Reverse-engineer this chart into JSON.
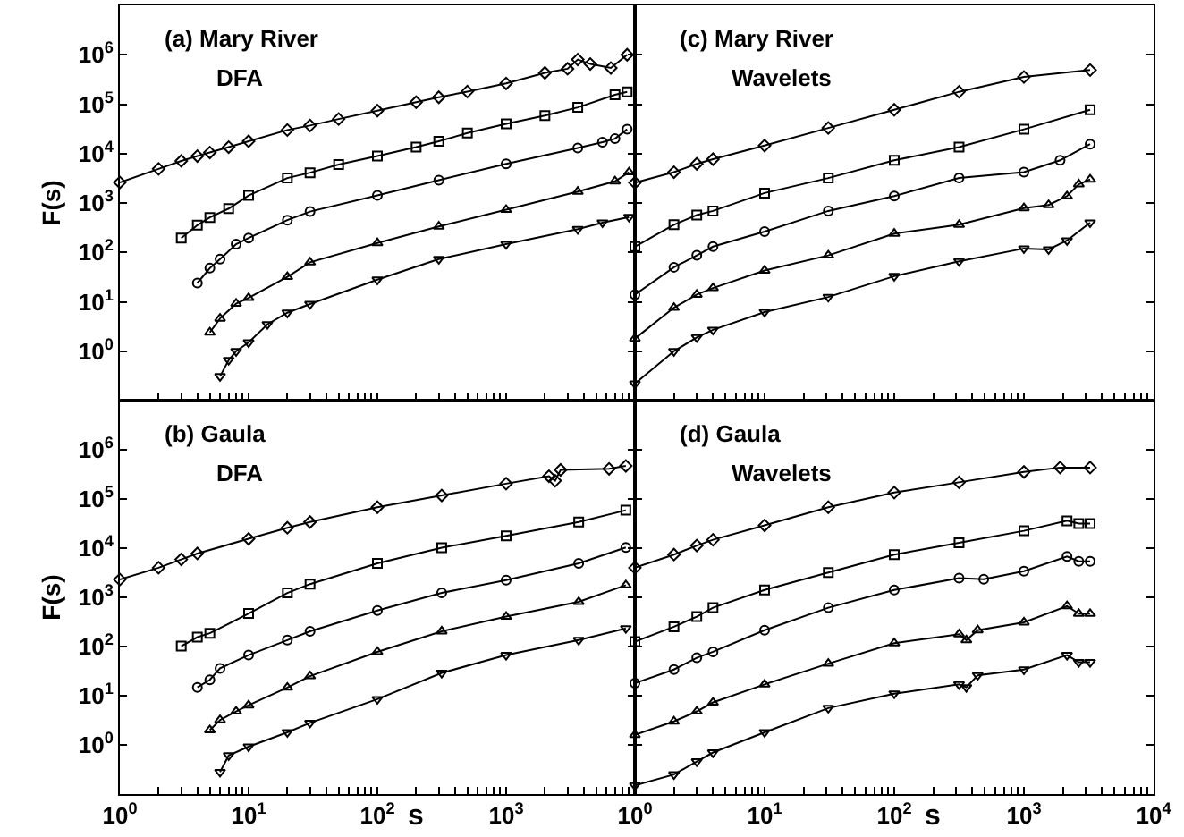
{
  "chart_data": [
    {
      "type": "line",
      "ylabel": "F(s)",
      "annotations": [
        "(a) Mary River",
        "DFA"
      ],
      "log": "xy",
      "grid": false,
      "line_style": "solid",
      "tick_labels": "y",
      "xlim": [
        1,
        10000
      ],
      "ylim": [
        0.1,
        10000000
      ],
      "xticks": [
        {
          "value": 1,
          "label": null
        },
        {
          "value": 2,
          "label": null
        },
        {
          "value": 3,
          "label": null
        },
        {
          "value": 4,
          "label": null
        },
        {
          "value": 5,
          "label": null
        },
        {
          "value": 6,
          "label": null
        },
        {
          "value": 7,
          "label": null
        },
        {
          "value": 8,
          "label": null
        },
        {
          "value": 9,
          "label": null
        },
        {
          "value": 10,
          "label": null
        },
        {
          "value": 20,
          "label": null
        },
        {
          "value": 30,
          "label": null
        },
        {
          "value": 40,
          "label": null
        },
        {
          "value": 50,
          "label": null
        },
        {
          "value": 60,
          "label": null
        },
        {
          "value": 70,
          "label": null
        },
        {
          "value": 80,
          "label": null
        },
        {
          "value": 90,
          "label": null
        },
        {
          "value": 100,
          "label": null
        },
        {
          "value": 200,
          "label": null
        },
        {
          "value": 300,
          "label": null
        },
        {
          "value": 400,
          "label": null
        },
        {
          "value": 500,
          "label": null
        },
        {
          "value": 600,
          "label": null
        },
        {
          "value": 700,
          "label": null
        },
        {
          "value": 800,
          "label": null
        },
        {
          "value": 900,
          "label": null
        },
        {
          "value": 1000,
          "label": null
        },
        {
          "value": 2000,
          "label": null
        },
        {
          "value": 3000,
          "label": null
        },
        {
          "value": 4000,
          "label": null
        },
        {
          "value": 5000,
          "label": null
        },
        {
          "value": 6000,
          "label": null
        },
        {
          "value": 7000,
          "label": null
        },
        {
          "value": 8000,
          "label": null
        },
        {
          "value": 9000,
          "label": null
        }
      ],
      "yticks": [
        {
          "value": 1,
          "label": "10$^{0}$"
        },
        {
          "value": 10,
          "label": "10$^{1}$"
        },
        {
          "value": 100,
          "label": "10$^{2}$"
        },
        {
          "value": 1000,
          "label": "10$^{3}$"
        },
        {
          "value": 10000,
          "label": "10$^{4}$"
        },
        {
          "value": 100000,
          "label": "10$^{5}$"
        },
        {
          "value": 1000000,
          "label": "10$^{6}$"
        }
      ],
      "series": [
        {
          "color": "#000000",
          "marker": "diamond",
          "x": [
            1,
            2,
            3,
            4,
            5,
            7,
            10,
            20,
            30,
            50,
            100,
            200,
            300,
            500,
            1000,
            2000,
            3000,
            3600,
            4500,
            6500,
            8700
          ],
          "values": [
            2600,
            4900,
            7100,
            8900,
            10500,
            13500,
            17800,
            30000,
            37000,
            50000,
            74000,
            110000,
            138000,
            180000,
            263000,
            430000,
            520000,
            800000,
            650000,
            540000,
            1000000
          ]
        },
        {
          "color": "#000000",
          "marker": "square",
          "x": [
            3,
            4,
            5,
            7,
            10,
            20,
            30,
            50,
            100,
            200,
            300,
            500,
            1000,
            2000,
            3600,
            7000,
            8700
          ],
          "values": [
            195,
            355,
            510,
            770,
            1420,
            3200,
            4100,
            6000,
            8900,
            13500,
            17800,
            26000,
            40000,
            59000,
            86000,
            155000,
            178000
          ]
        },
        {
          "color": "#000000",
          "marker": "circle",
          "x": [
            4,
            5,
            6,
            8,
            10,
            20,
            30,
            100,
            300,
            1000,
            3600,
            5600,
            7000,
            8700
          ],
          "values": [
            24,
            48,
            73,
            147,
            195,
            450,
            670,
            1420,
            2900,
            6200,
            13000,
            17000,
            20000,
            31000
          ]
        },
        {
          "color": "#000000",
          "marker": "triangle",
          "x": [
            5,
            6,
            8,
            10,
            20,
            30,
            100,
            300,
            1000,
            3600,
            7000,
            9000
          ],
          "values": [
            2.4,
            4.6,
            9.2,
            12,
            32,
            63,
            155,
            335,
            730,
            1700,
            2750,
            4200
          ]
        },
        {
          "color": "#000000",
          "marker": "triangle-down",
          "x": [
            6,
            7,
            8,
            10,
            14,
            20,
            30,
            100,
            300,
            1000,
            3600,
            5600,
            9000
          ],
          "values": [
            0.31,
            0.66,
            1,
            1.5,
            3.5,
            6,
            9,
            28,
            73,
            147,
            295,
            400,
            520
          ]
        }
      ]
    },
    {
      "type": "line",
      "annotations": [
        "(c) Mary River",
        "Wavelets"
      ],
      "log": "xy",
      "grid": false,
      "line_style": "solid",
      "tick_labels": false,
      "xlim": [
        1,
        10000
      ],
      "ylim": [
        0.1,
        10000000
      ],
      "xticks": [
        {
          "value": 1,
          "label": null
        },
        {
          "value": 2,
          "label": null
        },
        {
          "value": 3,
          "label": null
        },
        {
          "value": 4,
          "label": null
        },
        {
          "value": 5,
          "label": null
        },
        {
          "value": 6,
          "label": null
        },
        {
          "value": 7,
          "label": null
        },
        {
          "value": 8,
          "label": null
        },
        {
          "value": 9,
          "label": null
        },
        {
          "value": 10,
          "label": null
        },
        {
          "value": 20,
          "label": null
        },
        {
          "value": 30,
          "label": null
        },
        {
          "value": 40,
          "label": null
        },
        {
          "value": 50,
          "label": null
        },
        {
          "value": 60,
          "label": null
        },
        {
          "value": 70,
          "label": null
        },
        {
          "value": 80,
          "label": null
        },
        {
          "value": 90,
          "label": null
        },
        {
          "value": 100,
          "label": null
        },
        {
          "value": 200,
          "label": null
        },
        {
          "value": 300,
          "label": null
        },
        {
          "value": 400,
          "label": null
        },
        {
          "value": 500,
          "label": null
        },
        {
          "value": 600,
          "label": null
        },
        {
          "value": 700,
          "label": null
        },
        {
          "value": 800,
          "label": null
        },
        {
          "value": 900,
          "label": null
        },
        {
          "value": 1000,
          "label": null
        },
        {
          "value": 2000,
          "label": null
        },
        {
          "value": 3000,
          "label": null
        },
        {
          "value": 4000,
          "label": null
        },
        {
          "value": 5000,
          "label": null
        },
        {
          "value": 6000,
          "label": null
        },
        {
          "value": 7000,
          "label": null
        },
        {
          "value": 8000,
          "label": null
        },
        {
          "value": 9000,
          "label": null
        },
        {
          "value": 10000,
          "label": null
        }
      ],
      "yticks": [
        {
          "value": 1,
          "label": null
        },
        {
          "value": 10,
          "label": null
        },
        {
          "value": 100,
          "label": null
        },
        {
          "value": 1000,
          "label": null
        },
        {
          "value": 10000,
          "label": null
        },
        {
          "value": 100000,
          "label": null
        },
        {
          "value": 1000000,
          "label": null
        }
      ],
      "series": [
        {
          "color": "#000000",
          "marker": "diamond",
          "x": [
            1,
            2,
            3,
            4,
            10,
            31,
            100,
            316,
            1000,
            3240
          ],
          "values": [
            2570,
            4200,
            6200,
            7700,
            14500,
            33000,
            77000,
            178000,
            355000,
            490000
          ]
        },
        {
          "color": "#000000",
          "marker": "square",
          "x": [
            1,
            2,
            3,
            4,
            10,
            31,
            100,
            316,
            1000,
            3240
          ],
          "values": [
            131,
            363,
            570,
            690,
            1590,
            3200,
            7300,
            13500,
            31000,
            77000
          ]
        },
        {
          "color": "#000000",
          "marker": "circle",
          "x": [
            1,
            2,
            3,
            4,
            10,
            31,
            100,
            316,
            1000,
            1900,
            3240
          ],
          "values": [
            14,
            50,
            87,
            131,
            263,
            690,
            1380,
            3200,
            4200,
            7300,
            15500
          ]
        },
        {
          "color": "#000000",
          "marker": "triangle",
          "x": [
            1,
            2,
            3,
            4,
            10,
            31,
            100,
            316,
            1000,
            1550,
            2150,
            2650,
            3240
          ],
          "values": [
            1.8,
            7.6,
            14,
            19,
            43,
            87,
            240,
            363,
            790,
            910,
            1380,
            2400,
            3000
          ]
        },
        {
          "color": "#000000",
          "marker": "triangle-down",
          "x": [
            1,
            2,
            3,
            4,
            10,
            31,
            100,
            316,
            1000,
            1550,
            2150,
            3240
          ],
          "values": [
            0.22,
            1,
            1.9,
            2.7,
            6.2,
            12.5,
            33,
            66,
            120,
            115,
            174,
            400
          ]
        }
      ]
    },
    {
      "type": "line",
      "xlabel": "s",
      "ylabel": "F(s)",
      "annotations": [
        "(b) Gaula",
        "DFA"
      ],
      "log": "xy",
      "grid": false,
      "line_style": "solid",
      "xlim": [
        1,
        10000
      ],
      "ylim": [
        0.1,
        10000000
      ],
      "xticks": [
        {
          "value": 1,
          "label": "10$^{0}$"
        },
        {
          "value": 2,
          "label": null
        },
        {
          "value": 3,
          "label": null
        },
        {
          "value": 4,
          "label": null
        },
        {
          "value": 5,
          "label": null
        },
        {
          "value": 6,
          "label": null
        },
        {
          "value": 7,
          "label": null
        },
        {
          "value": 8,
          "label": null
        },
        {
          "value": 9,
          "label": null
        },
        {
          "value": 10,
          "label": "10$^{1}$"
        },
        {
          "value": 20,
          "label": null
        },
        {
          "value": 30,
          "label": null
        },
        {
          "value": 40,
          "label": null
        },
        {
          "value": 50,
          "label": null
        },
        {
          "value": 60,
          "label": null
        },
        {
          "value": 70,
          "label": null
        },
        {
          "value": 80,
          "label": null
        },
        {
          "value": 90,
          "label": null
        },
        {
          "value": 100,
          "label": "10$^{2}$"
        },
        {
          "value": 200,
          "label": null
        },
        {
          "value": 300,
          "label": null
        },
        {
          "value": 400,
          "label": null
        },
        {
          "value": 500,
          "label": null
        },
        {
          "value": 600,
          "label": null
        },
        {
          "value": 700,
          "label": null
        },
        {
          "value": 800,
          "label": null
        },
        {
          "value": 900,
          "label": null
        },
        {
          "value": 1000,
          "label": "10$^{3}$"
        },
        {
          "value": 2000,
          "label": null
        },
        {
          "value": 3000,
          "label": null
        },
        {
          "value": 4000,
          "label": null
        },
        {
          "value": 5000,
          "label": null
        },
        {
          "value": 6000,
          "label": null
        },
        {
          "value": 7000,
          "label": null
        },
        {
          "value": 8000,
          "label": null
        },
        {
          "value": 9000,
          "label": null
        }
      ],
      "yticks": [
        {
          "value": 1,
          "label": "10$^{0}$"
        },
        {
          "value": 10,
          "label": "10$^{1}$"
        },
        {
          "value": 100,
          "label": "10$^{2}$"
        },
        {
          "value": 1000,
          "label": "10$^{3}$"
        },
        {
          "value": 10000,
          "label": "10$^{4}$"
        },
        {
          "value": 100000,
          "label": "10$^{5}$"
        },
        {
          "value": 1000000,
          "label": "10$^{6}$"
        }
      ],
      "series": [
        {
          "color": "#000000",
          "marker": "diamond",
          "x": [
            1,
            2,
            3,
            4,
            10,
            20,
            30,
            100,
            316,
            1000,
            2150,
            2400,
            2650,
            6300,
            8500
          ],
          "values": [
            2300,
            4000,
            5900,
            7800,
            15500,
            26000,
            34000,
            68000,
            118000,
            205000,
            290000,
            235000,
            390000,
            410000,
            470000
          ]
        },
        {
          "color": "#000000",
          "marker": "square",
          "x": [
            3,
            4,
            5,
            10,
            20,
            30,
            100,
            316,
            1000,
            3660,
            8500
          ],
          "values": [
            102,
            155,
            186,
            470,
            1230,
            1860,
            4900,
            10200,
            17800,
            34000,
            59000
          ]
        },
        {
          "color": "#000000",
          "marker": "circle",
          "x": [
            4,
            5,
            6,
            10,
            20,
            30,
            100,
            316,
            1000,
            3660,
            8500
          ],
          "values": [
            14.8,
            21,
            36,
            67,
            135,
            204,
            540,
            1230,
            2240,
            4900,
            10300
          ]
        },
        {
          "color": "#000000",
          "marker": "triangle",
          "x": [
            5,
            6,
            8,
            10,
            20,
            30,
            100,
            316,
            1000,
            3660,
            8500
          ],
          "values": [
            2,
            3.2,
            4.8,
            6.4,
            14.7,
            25,
            78,
            204,
            405,
            810,
            1770
          ]
        },
        {
          "color": "#000000",
          "marker": "triangle-down",
          "x": [
            6,
            7,
            10,
            20,
            30,
            100,
            316,
            1000,
            3660,
            8500
          ],
          "values": [
            0.28,
            0.61,
            0.92,
            1.8,
            2.8,
            8.5,
            29,
            67,
            135,
            234
          ]
        }
      ]
    },
    {
      "type": "line",
      "xlabel": "s",
      "annotations": [
        "(d) Gaula",
        "Wavelets"
      ],
      "log": "xy",
      "grid": false,
      "line_style": "solid",
      "tick_labels": "x",
      "xlim": [
        1,
        10000
      ],
      "ylim": [
        0.1,
        10000000
      ],
      "xticks": [
        {
          "value": 1,
          "label": "10$^{0}$"
        },
        {
          "value": 2,
          "label": null
        },
        {
          "value": 3,
          "label": null
        },
        {
          "value": 4,
          "label": null
        },
        {
          "value": 5,
          "label": null
        },
        {
          "value": 6,
          "label": null
        },
        {
          "value": 7,
          "label": null
        },
        {
          "value": 8,
          "label": null
        },
        {
          "value": 9,
          "label": null
        },
        {
          "value": 10,
          "label": "10$^{1}$"
        },
        {
          "value": 20,
          "label": null
        },
        {
          "value": 30,
          "label": null
        },
        {
          "value": 40,
          "label": null
        },
        {
          "value": 50,
          "label": null
        },
        {
          "value": 60,
          "label": null
        },
        {
          "value": 70,
          "label": null
        },
        {
          "value": 80,
          "label": null
        },
        {
          "value": 90,
          "label": null
        },
        {
          "value": 100,
          "label": "10$^{2}$"
        },
        {
          "value": 200,
          "label": null
        },
        {
          "value": 300,
          "label": null
        },
        {
          "value": 400,
          "label": null
        },
        {
          "value": 500,
          "label": null
        },
        {
          "value": 600,
          "label": null
        },
        {
          "value": 700,
          "label": null
        },
        {
          "value": 800,
          "label": null
        },
        {
          "value": 900,
          "label": null
        },
        {
          "value": 1000,
          "label": "10$^{3}$"
        },
        {
          "value": 2000,
          "label": null
        },
        {
          "value": 3000,
          "label": null
        },
        {
          "value": 4000,
          "label": null
        },
        {
          "value": 5000,
          "label": null
        },
        {
          "value": 6000,
          "label": null
        },
        {
          "value": 7000,
          "label": null
        },
        {
          "value": 8000,
          "label": null
        },
        {
          "value": 9000,
          "label": null
        },
        {
          "value": 10000,
          "label": "10$^{4}$"
        }
      ],
      "yticks": [
        {
          "value": 1,
          "label": null
        },
        {
          "value": 10,
          "label": null
        },
        {
          "value": 100,
          "label": null
        },
        {
          "value": 1000,
          "label": null
        },
        {
          "value": 10000,
          "label": null
        },
        {
          "value": 100000,
          "label": null
        },
        {
          "value": 1000000,
          "label": null
        }
      ],
      "series": [
        {
          "color": "#000000",
          "marker": "diamond",
          "x": [
            1,
            2,
            3,
            4,
            10,
            31,
            100,
            316,
            1000,
            1900,
            3240
          ],
          "values": [
            4000,
            7400,
            11300,
            14800,
            29000,
            68000,
            135000,
            218000,
            355000,
            435000,
            435000
          ]
        },
        {
          "color": "#000000",
          "marker": "square",
          "x": [
            1,
            2,
            3,
            4,
            10,
            31,
            100,
            316,
            1000,
            2150,
            2650,
            3240
          ],
          "values": [
            126,
            252,
            405,
            615,
            1410,
            3200,
            7400,
            12900,
            22500,
            36000,
            31600,
            31600
          ]
        },
        {
          "color": "#000000",
          "marker": "circle",
          "x": [
            1,
            2,
            3,
            4,
            10,
            31,
            100,
            316,
            490,
            1000,
            2150,
            2650,
            3240
          ],
          "values": [
            18,
            34,
            59,
            78,
            215,
            615,
            1410,
            2450,
            2330,
            3400,
            6800,
            5400,
            5400
          ]
        },
        {
          "color": "#000000",
          "marker": "triangle",
          "x": [
            1,
            2,
            3,
            4,
            10,
            31,
            100,
            316,
            360,
            440,
            1000,
            2150,
            2650,
            3240
          ],
          "values": [
            1.6,
            3,
            4.8,
            7.3,
            17,
            45,
            117,
            178,
            135,
            215,
            310,
            665,
            465,
            465
          ]
        },
        {
          "color": "#000000",
          "marker": "triangle-down",
          "x": [
            1,
            2,
            3,
            4,
            10,
            31,
            100,
            316,
            360,
            440,
            1000,
            2150,
            2650,
            3240
          ],
          "values": [
            0.15,
            0.25,
            0.46,
            0.7,
            1.8,
            5.6,
            11,
            17,
            14.8,
            26,
            34,
            67,
            48,
            48
          ]
        }
      ]
    }
  ]
}
